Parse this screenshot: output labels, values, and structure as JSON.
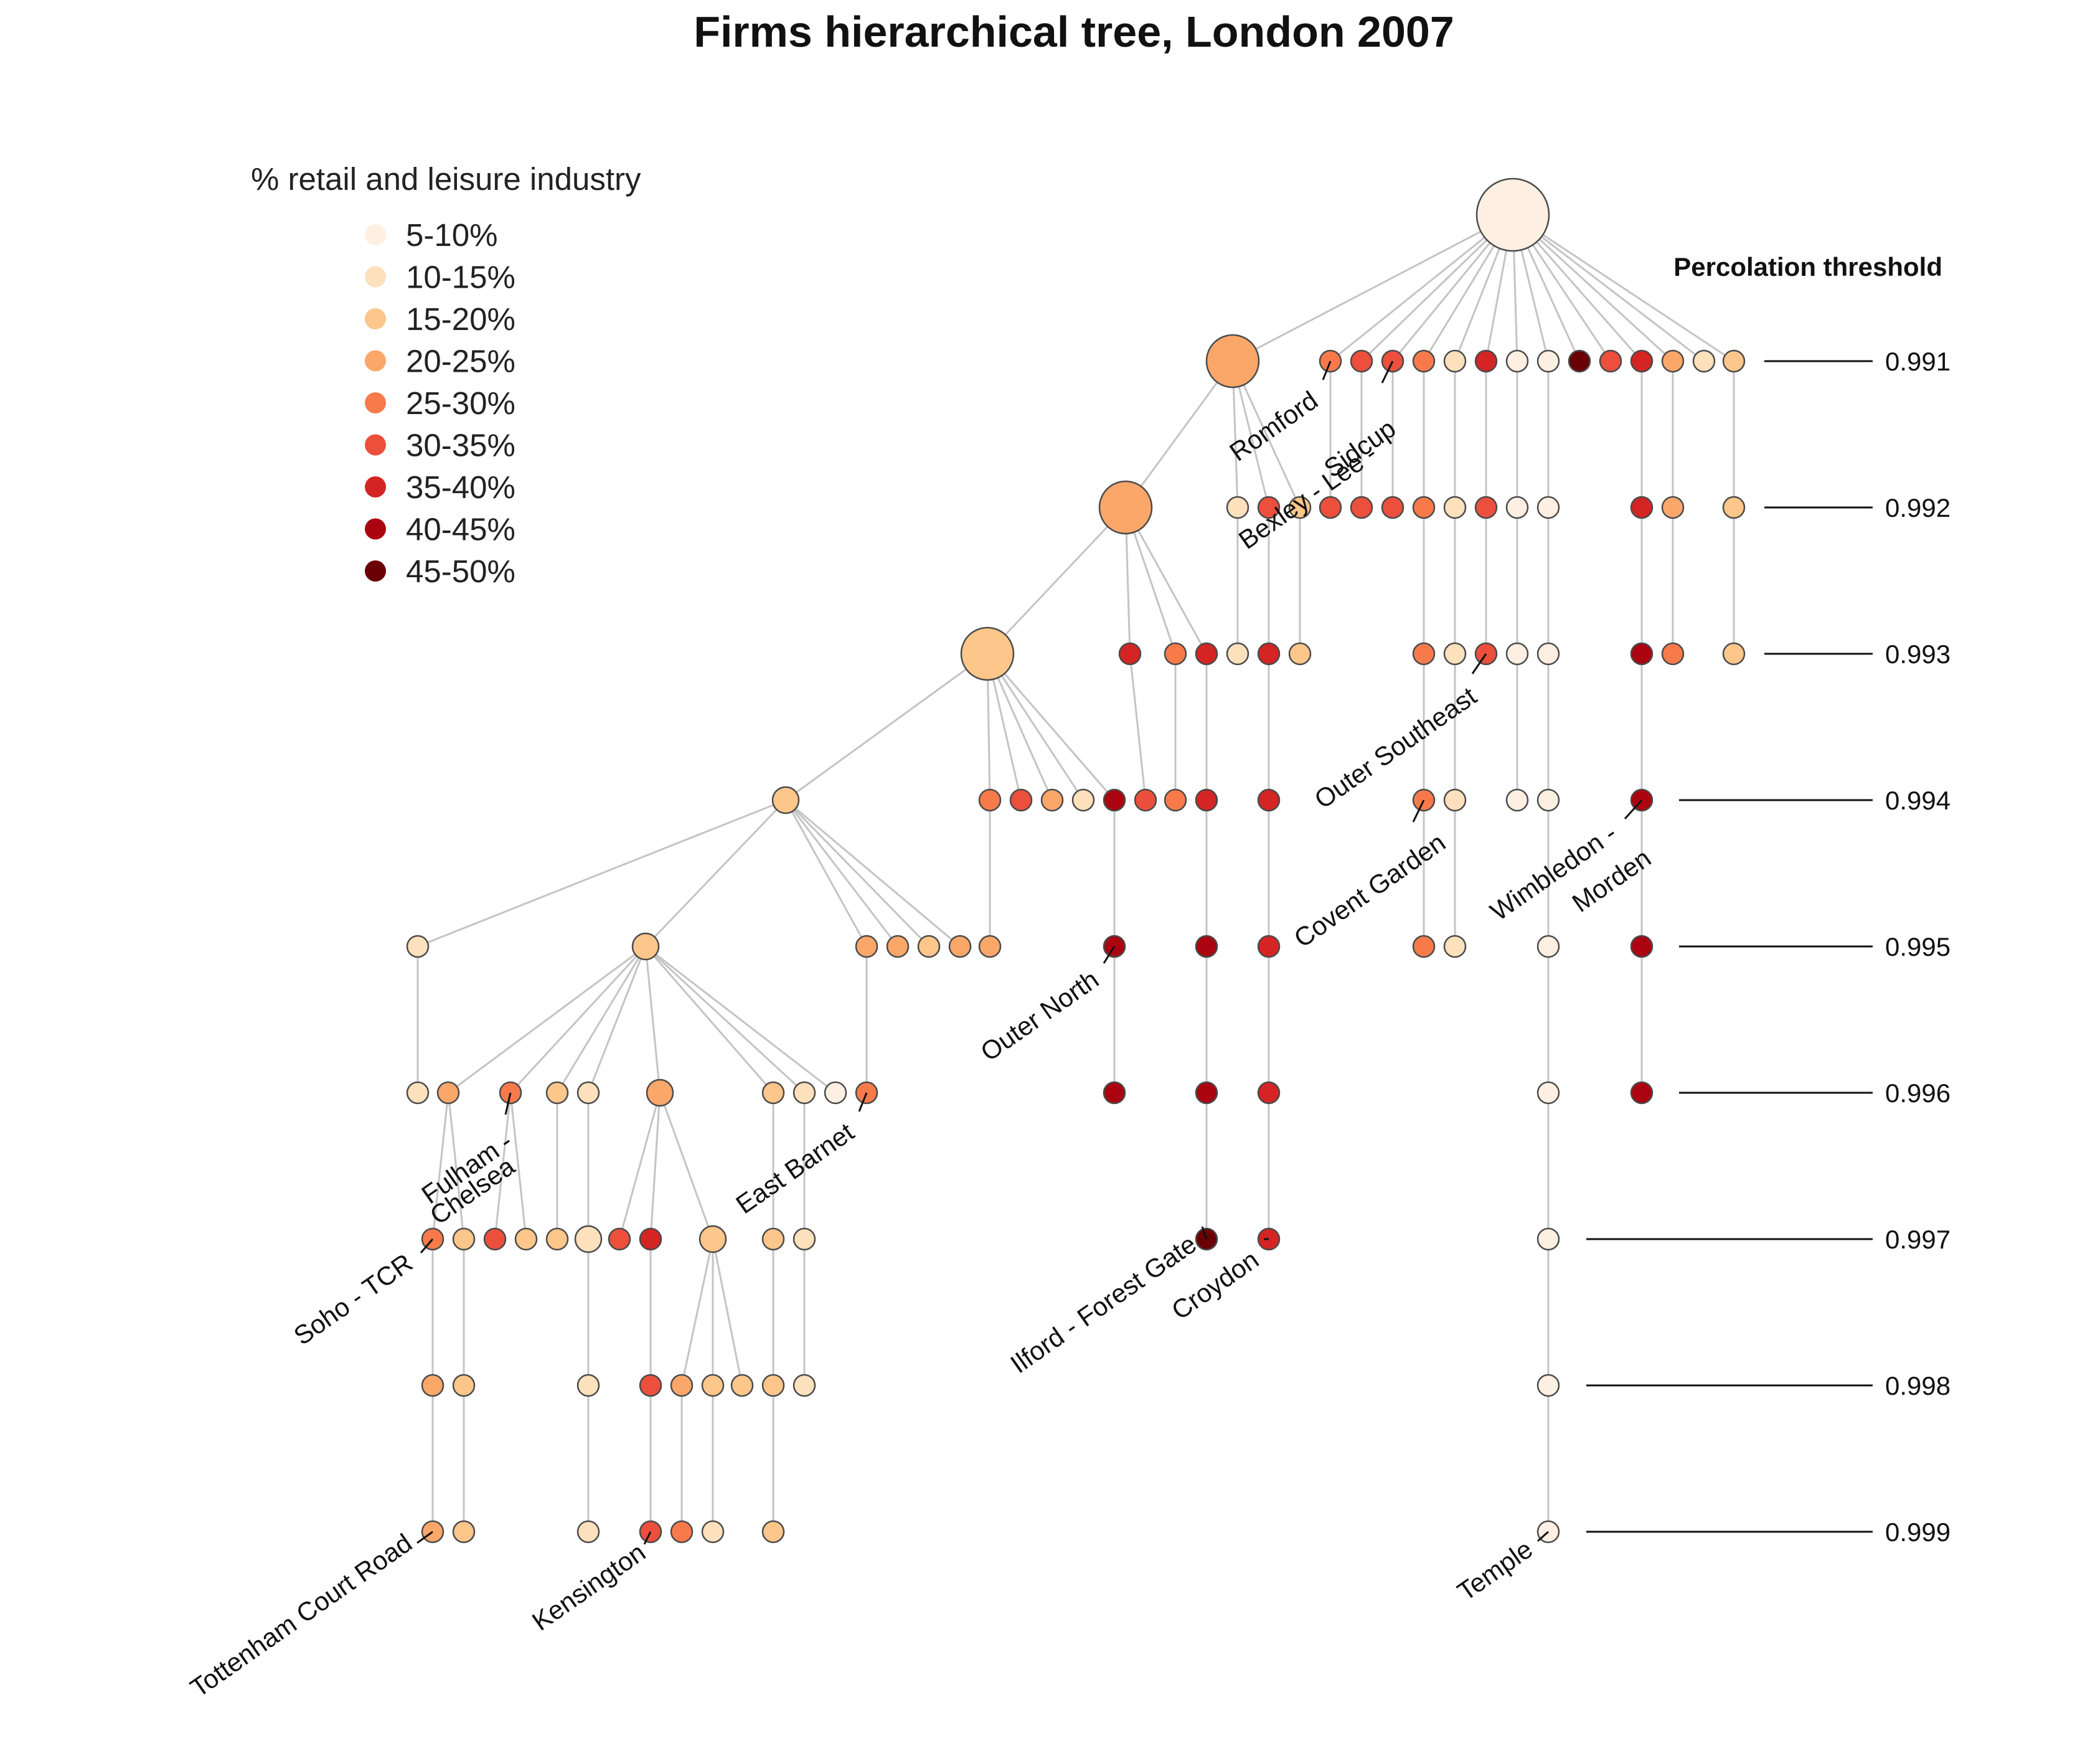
{
  "title": "Firms hierarchical tree, London 2007",
  "legend": {
    "title": "% retail and leisure industry",
    "items": [
      {
        "label": "5-10%",
        "color": "#fdf0e2"
      },
      {
        "label": "10-15%",
        "color": "#fde0bc"
      },
      {
        "label": "15-20%",
        "color": "#fdc68a"
      },
      {
        "label": "20-25%",
        "color": "#fca76a"
      },
      {
        "label": "25-30%",
        "color": "#f87a4a"
      },
      {
        "label": "30-35%",
        "color": "#ec4f3c"
      },
      {
        "label": "35-40%",
        "color": "#d42423"
      },
      {
        "label": "40-45%",
        "color": "#ac0310"
      },
      {
        "label": "45-50%",
        "color": "#6a0005"
      }
    ]
  },
  "thresholds": {
    "title": "Percolation threshold",
    "levels": [
      "0.991",
      "0.992",
      "0.993",
      "0.994",
      "0.995",
      "0.996",
      "0.997",
      "0.998",
      "0.999"
    ]
  },
  "node_labels": [
    {
      "id": "romford",
      "text": "Romford"
    },
    {
      "id": "bexley1",
      "text": "Bexley - Lee -"
    },
    {
      "id": "bexley2",
      "text": "Sidcup"
    },
    {
      "id": "outer_southeast",
      "text": "Outer Southeast"
    },
    {
      "id": "covent_garden",
      "text": "Covent Garden"
    },
    {
      "id": "wimbledon1",
      "text": "Wimbledon -"
    },
    {
      "id": "wimbledon2",
      "text": "Morden"
    },
    {
      "id": "outer_north",
      "text": "Outer North"
    },
    {
      "id": "fulham1",
      "text": "Fulham -"
    },
    {
      "id": "fulham2",
      "text": "Chelsea"
    },
    {
      "id": "east_barnet",
      "text": "East Barnet"
    },
    {
      "id": "soho",
      "text": "Soho - TCR"
    },
    {
      "id": "ilford",
      "text": "Ilford - Forest Gate"
    },
    {
      "id": "croydon",
      "text": "Croydon"
    },
    {
      "id": "tcr",
      "text": "Tottenham Court Road"
    },
    {
      "id": "kensington",
      "text": "Kensington"
    },
    {
      "id": "temple",
      "text": "Temple"
    }
  ]
}
